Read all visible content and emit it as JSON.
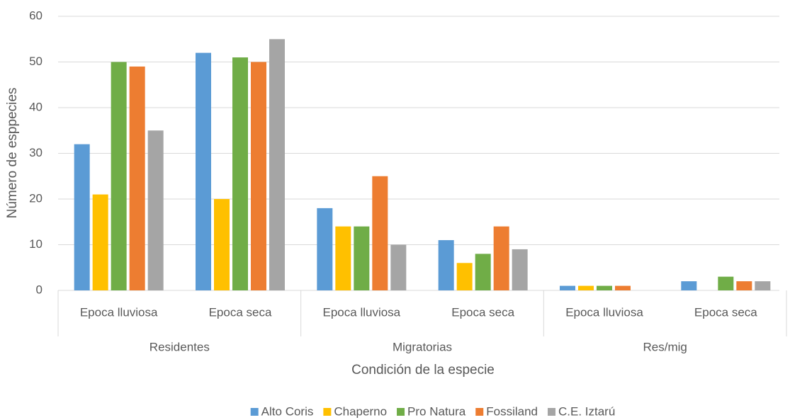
{
  "chart_data": {
    "type": "bar",
    "x_label": "Condición de la especie",
    "y_label": "Número de esppecies",
    "categories": [
      "Epoca lluviosa",
      "Epoca seca",
      "Epoca lluviosa",
      "Epoca seca",
      "Epoca lluviosa",
      "Epoca seca"
    ],
    "groups": [
      "Residentes",
      "Migratorias",
      "Res/mig"
    ],
    "series": [
      {
        "name": "Alto Coris",
        "color": "#5b9bd5",
        "values": [
          32,
          52,
          18,
          11,
          1,
          2
        ]
      },
      {
        "name": "Chaperno",
        "color": "#ffc000",
        "values": [
          21,
          20,
          14,
          6,
          1,
          0
        ]
      },
      {
        "name": "Pro Natura",
        "color": "#70ad47",
        "values": [
          50,
          51,
          14,
          8,
          1,
          3
        ]
      },
      {
        "name": "Fossiland",
        "color": "#ed7d31",
        "values": [
          49,
          50,
          25,
          14,
          1,
          2
        ]
      },
      {
        "name": "C.E. Iztarú",
        "color": "#a5a5a5",
        "values": [
          35,
          55,
          10,
          9,
          0,
          2
        ]
      }
    ],
    "ylim": [
      0,
      60
    ],
    "yticks": [
      0,
      10,
      20,
      30,
      40,
      50,
      60
    ],
    "grid": true,
    "legend": "bottom"
  }
}
